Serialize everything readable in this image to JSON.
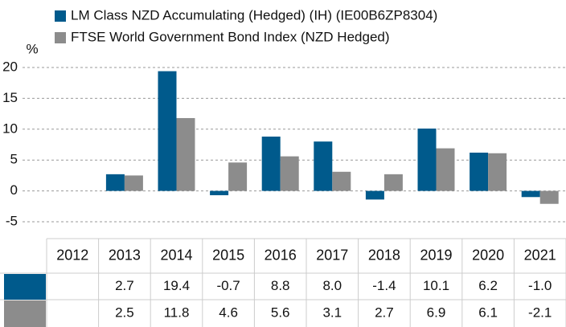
{
  "chart_data": {
    "type": "bar",
    "y_label": "%",
    "categories": [
      "2012",
      "2013",
      "2014",
      "2015",
      "2016",
      "2017",
      "2018",
      "2019",
      "2020",
      "2021"
    ],
    "series": [
      {
        "name": "LM Class NZD Accumulating (Hedged) (IH) (IE00B6ZP8304)",
        "color": "#005a8c",
        "values": [
          null,
          2.7,
          19.4,
          -0.7,
          8.8,
          8,
          -1.4,
          10.1,
          6.2,
          -1
        ],
        "value_labels": [
          null,
          "2.7",
          "19.4",
          "-0.7",
          "8.8",
          "8.0",
          "-1.4",
          "10.1",
          "6.2",
          "-1.0"
        ]
      },
      {
        "name": "FTSE World Government Bond Index (NZD Hedged)",
        "color": "#8c8c8c",
        "values": [
          null,
          2.5,
          11.8,
          4.6,
          5.6,
          3.1,
          2.7,
          6.9,
          6.1,
          -2.1
        ],
        "value_labels": [
          null,
          "2.5",
          "11.8",
          "4.6",
          "5.6",
          "3.1",
          "2.7",
          "6.9",
          "6.1",
          "-2.1"
        ]
      }
    ],
    "ylim": [
      -5,
      20
    ],
    "yticks": [
      -5,
      0,
      5,
      10,
      15,
      20
    ],
    "grid": true
  }
}
